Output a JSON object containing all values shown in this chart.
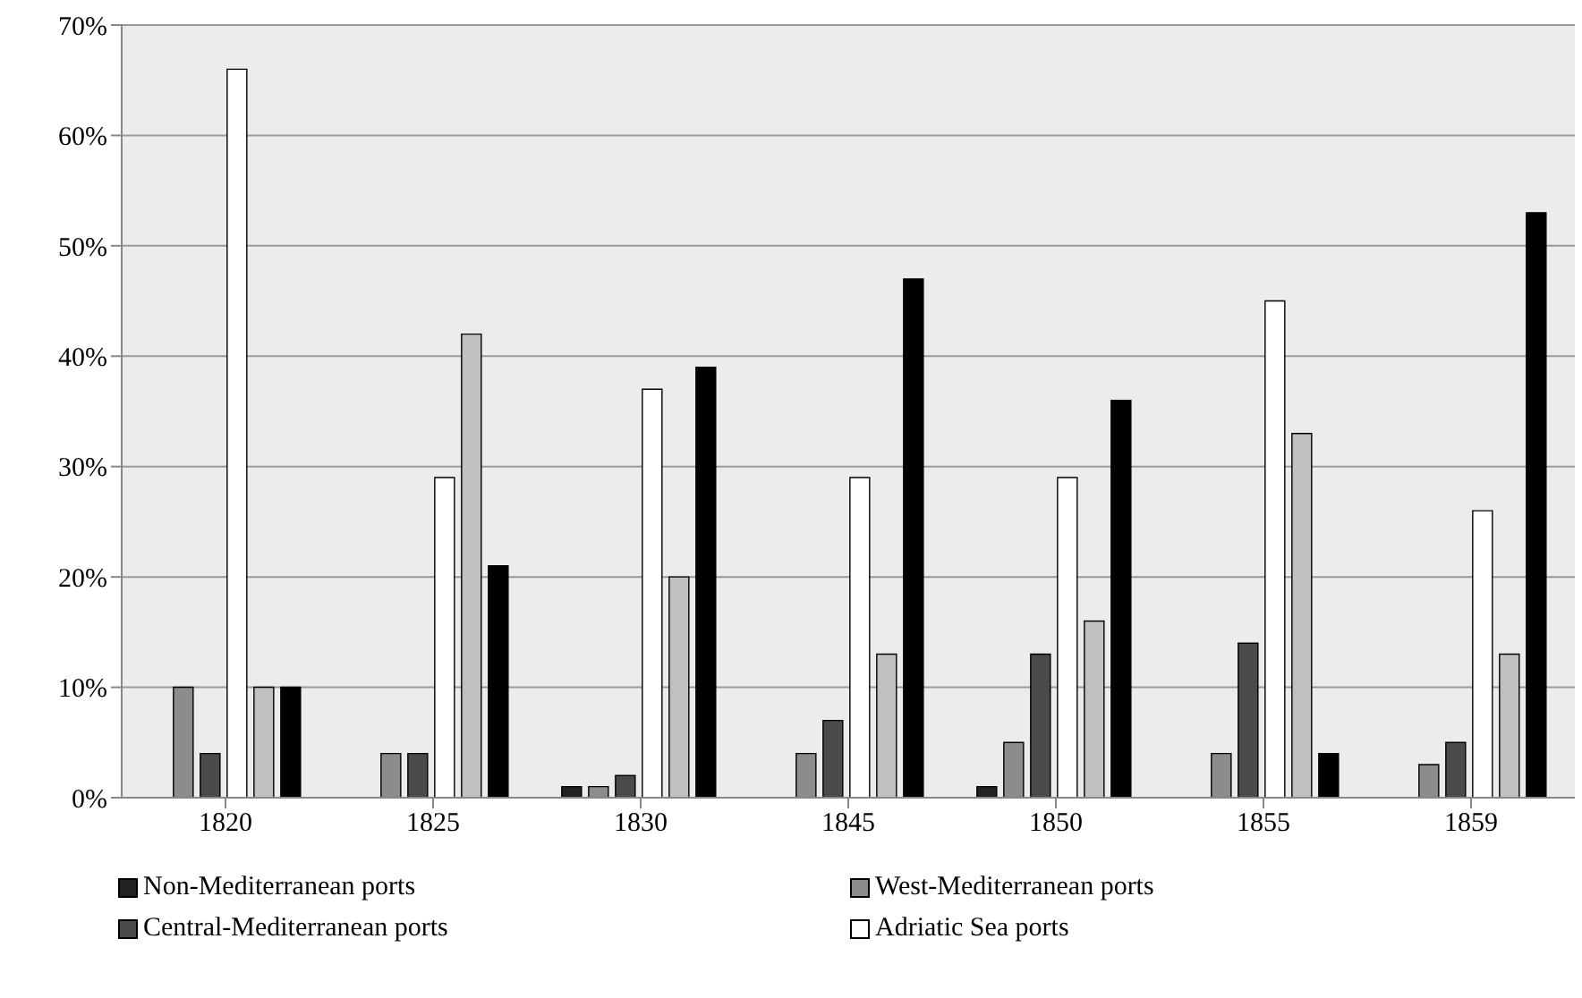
{
  "chart_data": {
    "type": "bar",
    "categories": [
      "1820",
      "1825",
      "1830",
      "1845",
      "1850",
      "1855",
      "1859"
    ],
    "series": [
      {
        "name": "Non-Mediterranean ports",
        "color": "#222222",
        "values": [
          0,
          0,
          1,
          0,
          1,
          0,
          0
        ]
      },
      {
        "name": "West-Mediterranean ports",
        "color": "#8c8c8c",
        "values": [
          10,
          4,
          1,
          4,
          5,
          4,
          3
        ]
      },
      {
        "name": "Central-Mediterranean ports",
        "color": "#4a4a4a",
        "values": [
          4,
          4,
          2,
          7,
          13,
          14,
          5
        ]
      },
      {
        "name": "Adriatic Sea ports",
        "color": "#ffffff",
        "values": [
          66,
          29,
          37,
          29,
          29,
          45,
          26
        ]
      },
      {
        "color": "#c0c0c0",
        "values": [
          10,
          42,
          20,
          13,
          16,
          33,
          13
        ]
      },
      {
        "color": "#000000",
        "values": [
          10,
          21,
          39,
          47,
          36,
          4,
          53
        ]
      }
    ],
    "ylim": [
      0,
      70
    ],
    "yticks": [
      {
        "value": 0,
        "label": "0%"
      },
      {
        "value": 10,
        "label": "10%"
      },
      {
        "value": 20,
        "label": "20%"
      },
      {
        "value": 30,
        "label": "30%"
      },
      {
        "value": 40,
        "label": "40%"
      },
      {
        "value": 50,
        "label": "50%"
      },
      {
        "value": 60,
        "label": "60%"
      },
      {
        "value": 70,
        "label": "70%"
      }
    ],
    "grid": "y",
    "legend": "bottom"
  }
}
